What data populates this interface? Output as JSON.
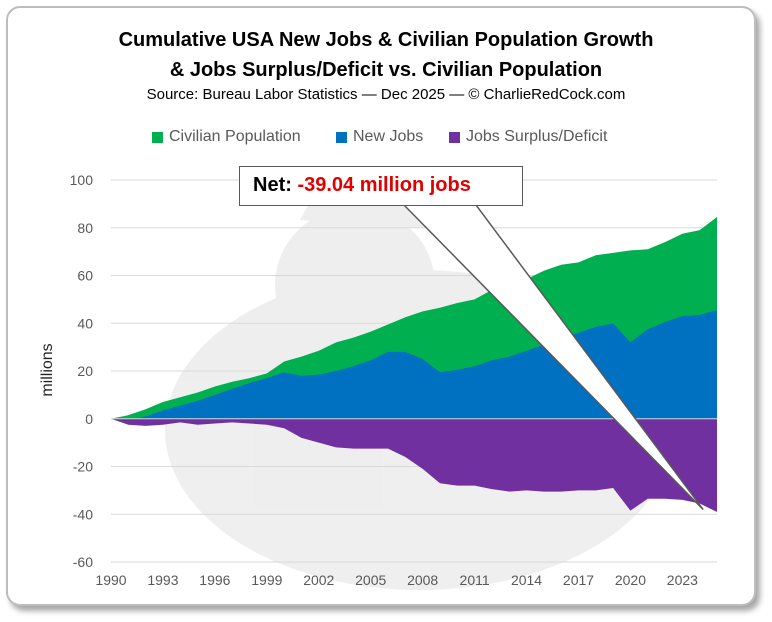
{
  "title_line1": "Cumulative USA New Jobs & Civilian Population Growth",
  "title_line2": "& Jobs Surplus/Deficit vs. Civilian Population",
  "source": "Source: Bureau Labor Statistics — Dec 2025 — © CharlieRedCock.com",
  "callout": {
    "label": "Net:",
    "value": "-39.04 million jobs"
  },
  "colors": {
    "population": "#00b050",
    "jobs": "#0070c0",
    "deficit": "#7030a0"
  },
  "chart_data": {
    "type": "area",
    "title": "Cumulative USA New Jobs & Civilian Population Growth & Jobs Surplus/Deficit vs. Civilian Population",
    "xlabel": "",
    "ylabel": "millions",
    "xlim": [
      1990,
      2025
    ],
    "ylim": [
      -60,
      100
    ],
    "x_ticks": [
      "1990",
      "1993",
      "1996",
      "1999",
      "2002",
      "2005",
      "2008",
      "2011",
      "2014",
      "2017",
      "2020",
      "2023"
    ],
    "y_ticks": [
      "100",
      "80",
      "60",
      "40",
      "20",
      "0",
      "-20",
      "-40",
      "-60"
    ],
    "legend": "top",
    "x": [
      1990,
      1991,
      1992,
      1993,
      1994,
      1995,
      1996,
      1997,
      1998,
      1999,
      2000,
      2001,
      2002,
      2003,
      2004,
      2005,
      2006,
      2007,
      2008,
      2009,
      2010,
      2011,
      2012,
      2013,
      2014,
      2015,
      2016,
      2017,
      2018,
      2019,
      2020,
      2021,
      2022,
      2023,
      2024,
      2025
    ],
    "series": [
      {
        "name": "Civilian Population",
        "values": [
          0,
          1.5,
          4,
          7,
          9,
          11,
          13.5,
          15.5,
          17,
          19,
          24,
          26,
          28.5,
          32,
          34,
          36.5,
          39.5,
          42.5,
          45,
          46.5,
          48.5,
          50,
          54,
          56.5,
          58.5,
          62,
          64.5,
          65.5,
          68.5,
          69.5,
          70.5,
          71,
          74,
          77.5,
          79,
          84.5
        ]
      },
      {
        "name": "New Jobs",
        "values": [
          0,
          -0.8,
          1,
          3.5,
          5.5,
          7.5,
          10,
          12.5,
          15,
          17,
          19.5,
          18,
          18.5,
          20,
          22,
          24.5,
          28,
          28,
          25,
          19.5,
          20.5,
          22,
          24.5,
          26,
          28.5,
          31,
          33.5,
          36,
          38.5,
          40,
          32,
          37.5,
          40.5,
          43,
          43.5,
          45.5
        ]
      },
      {
        "name": "Jobs Surplus/Deficit",
        "values": [
          0,
          -2.5,
          -3,
          -2.5,
          -1.5,
          -2.5,
          -2,
          -1.5,
          -2,
          -2.5,
          -4,
          -8,
          -10,
          -12,
          -12.5,
          -12.5,
          -12.5,
          -16,
          -21,
          -27,
          -28,
          -28,
          -29.5,
          -30.5,
          -30,
          -30.5,
          -30.5,
          -30,
          -30,
          -29,
          -38.5,
          -33.5,
          -33.5,
          -34,
          -35.5,
          -39.04
        ]
      }
    ]
  }
}
